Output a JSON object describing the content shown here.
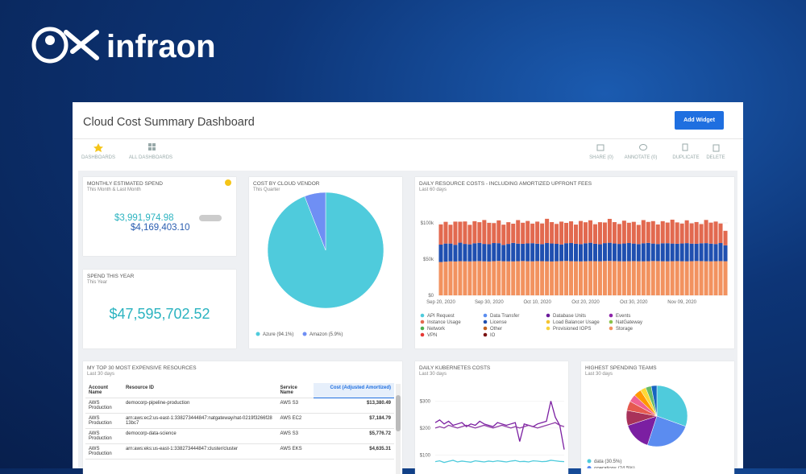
{
  "brand": {
    "name": "infraon"
  },
  "header": {
    "title": "Cloud Cost Summary Dashboard",
    "add_button": "Add Widget"
  },
  "toolbar": {
    "left": [
      "DASHBOARDS",
      "ALL DASHBOARDS"
    ],
    "right": [
      "SHARE (0)",
      "ANNOTATE (0)",
      "DUPLICATE",
      "DELETE"
    ]
  },
  "widgets": {
    "monthly": {
      "title": "MONTHLY ESTIMATED SPEND",
      "subtitle": "This Month & Last Month",
      "current": "$3,991,974.98",
      "previous": "$4,169,403.10"
    },
    "year": {
      "title": "SPEND THIS YEAR",
      "subtitle": "This Year",
      "value": "$47,595,702.52"
    },
    "table": {
      "title": "MY TOP 30 MOST EXPENSIVE RESOURCES",
      "subtitle": "Last 30 days",
      "columns": [
        "Account Name",
        "Resource ID",
        "Service Name",
        "Cost (Adjusted Amortized)"
      ],
      "rows": [
        [
          "AWS Production",
          "democorp-pipeline-production",
          "AWS S3",
          "$13,380.49"
        ],
        [
          "AWS Production",
          "arn:aws:ec2:us-east-1:338273444847:natgateway/nat-0219f3266f2813bc7",
          "AWS EC2",
          "$7,184.79"
        ],
        [
          "AWS Production",
          "democorp-data-science",
          "AWS S3",
          "$5,776.72"
        ],
        [
          "AWS Production",
          "arn:aws:eks:us-east-1:338273444847:cluster/cluster",
          "AWS EKS",
          "$4,635.31"
        ]
      ]
    }
  },
  "chart_data": [
    {
      "type": "pie",
      "title": "COST BY CLOUD VENDOR",
      "subtitle": "This Quarter",
      "categories": [
        "Azure",
        "Amazon"
      ],
      "values": [
        94.1,
        5.9
      ],
      "value_labels": [
        "Azure (94.1%)",
        "Amazon (5.9%)"
      ],
      "colors": [
        "#4fcbdc",
        "#6f8ff4"
      ]
    },
    {
      "type": "bar",
      "stacked": true,
      "title": "DAILY RESOURCE COSTS - INCLUDING AMORTIZED UPFRONT FEES",
      "subtitle": "Last 60 days",
      "categories": [
        "Sep 20, 2020",
        null,
        null,
        null,
        null,
        null,
        null,
        null,
        null,
        null,
        "Sep 30, 2020",
        null,
        null,
        null,
        null,
        null,
        null,
        null,
        null,
        null,
        "Oct 10, 2020",
        null,
        null,
        null,
        null,
        null,
        null,
        null,
        null,
        null,
        "Oct 20, 2020",
        null,
        null,
        null,
        null,
        null,
        null,
        null,
        null,
        null,
        "Oct 30, 2020",
        null,
        null,
        null,
        null,
        null,
        null,
        null,
        null,
        null,
        "Nov 09, 2020",
        null,
        null,
        null,
        null,
        null,
        null,
        null,
        null,
        null
      ],
      "ylim": [
        0,
        120000
      ],
      "yticks": [
        {
          "value": 0,
          "label": "$0"
        },
        {
          "value": 50000,
          "label": "$50k"
        },
        {
          "value": 100000,
          "label": "$100k"
        }
      ],
      "grid": true,
      "series": [
        {
          "name": "API Request",
          "color": "#4fcbdc"
        },
        {
          "name": "Instance Usage",
          "color": "#e2694f",
          "values": [
            28000,
            30000,
            26000,
            32000,
            29000,
            31000,
            27000,
            30500,
            28500,
            33000,
            29500,
            27500,
            31500,
            28000,
            30000,
            26500,
            32500,
            29000,
            31000,
            27000,
            30500,
            28500,
            33500,
            29500,
            27500,
            31500,
            28000,
            30000,
            26500,
            32000,
            29000,
            31000,
            27000,
            30500,
            28500,
            33000,
            29500,
            27500,
            31500,
            28000,
            30000,
            26500,
            32000,
            29000,
            31000,
            27000,
            30500,
            28500,
            33000,
            29500,
            27500,
            31500,
            28000,
            30000,
            26500,
            32000,
            29000,
            31000,
            27000,
            20000
          ]
        },
        {
          "name": "Network",
          "color": "#4caf50"
        },
        {
          "name": "VPN",
          "color": "#e53935"
        },
        {
          "name": "Data Transfer",
          "color": "#5b8def"
        },
        {
          "name": "License",
          "color": "#1f4fb0",
          "values": [
            24000,
            25000,
            24500,
            23000,
            25500,
            24000,
            23500,
            24800,
            25200,
            24000,
            23800,
            25000,
            24500,
            22500,
            24000,
            25500,
            24200,
            23800,
            24600,
            25000,
            24000,
            23500,
            25200,
            24800,
            24000,
            23000,
            24500,
            25000,
            24200,
            23800,
            24800,
            25300,
            24000,
            23500,
            24700,
            25100,
            24300,
            23900,
            24600,
            25000,
            24200,
            23700,
            24900,
            25200,
            24100,
            23600,
            24800,
            25000,
            24300,
            23900,
            24500,
            25100,
            24200,
            23800,
            24600,
            25000,
            24400,
            23700,
            24900,
            22000
          ]
        },
        {
          "name": "Other",
          "color": "#c0601e"
        },
        {
          "name": "IO",
          "color": "#7a1010"
        },
        {
          "name": "Database Units",
          "color": "#6a1b9a"
        },
        {
          "name": "Load Balancer Usage",
          "color": "#f4c430"
        },
        {
          "name": "Provisioned IOPS",
          "color": "#f7d23c"
        },
        {
          "name": "Events",
          "color": "#8e24aa"
        },
        {
          "name": "NatGateway",
          "color": "#8bc34a"
        },
        {
          "name": "Storage",
          "color": "#f2925f",
          "values": [
            46000,
            46500,
            47000,
            46800,
            47200,
            47000,
            46900,
            47100,
            47300,
            47000,
            46800,
            47200,
            47500,
            47100,
            47000,
            46900,
            47200,
            47400,
            47100,
            47000,
            47300,
            47200,
            47000,
            46800,
            47100,
            47300,
            47500,
            47200,
            47000,
            46900,
            47100,
            47300,
            47200,
            47000,
            47400,
            47500,
            47300,
            47100,
            47000,
            47200,
            47300,
            47100,
            47000,
            47200,
            47400,
            47300,
            47100,
            47000,
            47200,
            47300,
            47100,
            47000,
            47200,
            47400,
            47300,
            47100,
            47000,
            47200,
            47300,
            47100
          ]
        }
      ]
    },
    {
      "type": "line",
      "title": "DAILY KUBERNETES COSTS",
      "subtitle": "Last 30 days",
      "ylim": [
        50,
        340
      ],
      "yticks": [
        {
          "value": 100,
          "label": "$100"
        },
        {
          "value": 200,
          "label": "$200"
        },
        {
          "value": 300,
          "label": "$300"
        }
      ],
      "series": [
        {
          "color": "#7b1fa2",
          "values": [
            220,
            230,
            215,
            225,
            210,
            215,
            220,
            205,
            215,
            210,
            225,
            215,
            210,
            205,
            220,
            215,
            210,
            215,
            220,
            150,
            215,
            210,
            205,
            215,
            220,
            225,
            300,
            240,
            210,
            120
          ]
        },
        {
          "color": "#8e3aa6",
          "values": [
            200,
            205,
            200,
            210,
            205,
            200,
            205,
            210,
            205,
            200,
            205,
            210,
            205,
            200,
            205,
            210,
            205,
            200,
            205,
            200,
            205,
            210,
            205,
            200,
            205,
            210,
            215,
            220,
            210,
            205
          ]
        },
        {
          "color": "#4fcbdc",
          "values": [
            75,
            78,
            72,
            76,
            80,
            74,
            77,
            75,
            73,
            78,
            76,
            74,
            77,
            75,
            78,
            76,
            74,
            77,
            79,
            75,
            76,
            74,
            78,
            77,
            75,
            76,
            80,
            78,
            76,
            75
          ]
        }
      ]
    },
    {
      "type": "pie",
      "title": "HIGHEST SPENDING TEAMS",
      "subtitle": "Last 30 days",
      "categories": [
        "data",
        "operations",
        null,
        null,
        null,
        null,
        null,
        null,
        null,
        null
      ],
      "values": [
        30.5,
        24.5,
        15,
        8,
        5,
        4,
        4,
        3,
        3,
        3
      ],
      "value_labels": [
        "data (30.5%)",
        "operations (24.5%)",
        null,
        null,
        null,
        null,
        null,
        null,
        null,
        null
      ],
      "colors": [
        "#4fcbdc",
        "#5b8cf0",
        "#7b1fa2",
        "#a8325a",
        "#e5594f",
        "#f06292",
        "#ff9800",
        "#fdd835",
        "#66bb6a",
        "#1565c0"
      ]
    }
  ]
}
